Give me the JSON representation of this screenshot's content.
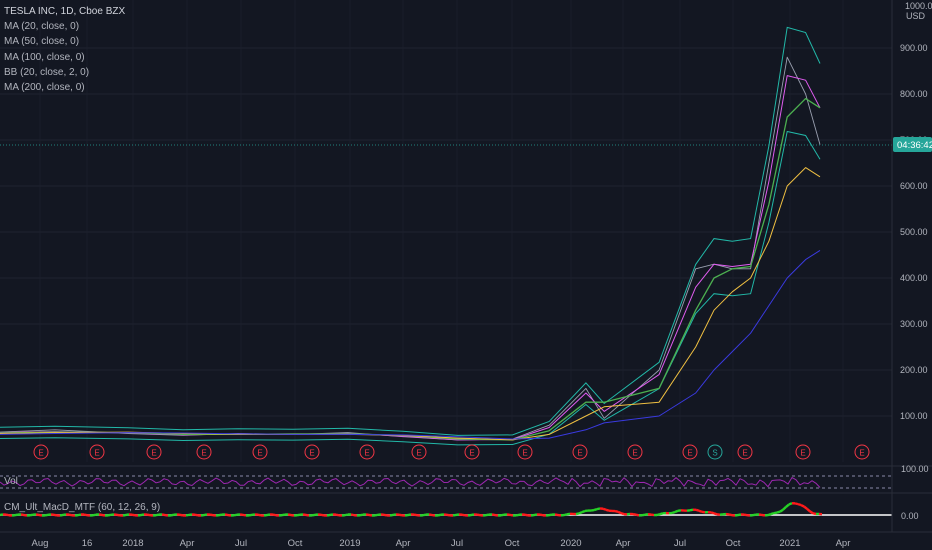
{
  "legend": {
    "symbol": "TESLA INC, 1D, Cboe BZX",
    "indicators": [
      "MA (20, close, 0)",
      "MA (50, close, 0)",
      "MA (100, close, 0)",
      "BB (20, close, 2, 0)",
      "MA (200, close, 0)"
    ]
  },
  "price_scale": {
    "currency_line1": "1000.00",
    "currency_line2": "USD"
  },
  "countdown": "04:36:42",
  "colors": {
    "background": "#131722",
    "price_tag": "#26a69a",
    "earnings": "#f23645",
    "ma20": "#e05cf0",
    "ma50": "#4caf50",
    "ma100": "#f0c042",
    "bb": "#22b8a8",
    "ma200": "#3a3ae0",
    "rsi": "#9c27b0",
    "macd_up": "#26d126",
    "macd_down": "#ff1a1a"
  },
  "events": {
    "earnings_label": "E",
    "split_label": "S"
  },
  "panes": {
    "vol": {
      "label": "Vol",
      "tick_label": "100.00"
    },
    "macd": {
      "label": "CM_Ult_MacD_MTF (60, 12, 26, 9)",
      "tick_label": "0.00"
    }
  },
  "chart_data": {
    "type": "line",
    "title": "TESLA INC, 1D, Cboe BZX",
    "ylim": [
      0,
      1000
    ],
    "y_ticks": [
      "100.00",
      "200.00",
      "300.00",
      "400.00",
      "500.00",
      "600.00",
      "700.00",
      "800.00",
      "900.00"
    ],
    "x_ticks": [
      "Aug",
      "16",
      "2018",
      "Apr",
      "Jul",
      "Oct",
      "2019",
      "Apr",
      "Jul",
      "Oct",
      "2020",
      "Apr",
      "Jul",
      "Oct",
      "2021",
      "Apr"
    ],
    "series": [
      {
        "name": "close",
        "x": [
          "2017-06",
          "2017-09",
          "2018-01",
          "2018-04",
          "2018-07",
          "2018-10",
          "2019-01",
          "2019-04",
          "2019-07",
          "2019-10",
          "2019-12",
          "2020-02",
          "2020-03",
          "2020-06",
          "2020-08",
          "2020-09",
          "2020-10",
          "2020-11",
          "2020-12",
          "2021-01",
          "2021-02",
          "2021-02-25"
        ],
        "values": [
          65,
          70,
          62,
          58,
          62,
          60,
          64,
          55,
          48,
          50,
          80,
          160,
          95,
          200,
          420,
          430,
          420,
          420,
          650,
          880,
          800,
          690
        ]
      },
      {
        "name": "MA (20, close, 0)",
        "values": [
          64,
          66,
          63,
          59,
          61,
          60,
          62,
          56,
          48,
          49,
          75,
          150,
          110,
          190,
          380,
          430,
          425,
          430,
          610,
          840,
          830,
          770
        ]
      },
      {
        "name": "MA (50, close, 0)",
        "values": [
          63,
          65,
          64,
          60,
          60,
          61,
          61,
          58,
          50,
          48,
          68,
          130,
          130,
          160,
          330,
          400,
          420,
          425,
          560,
          750,
          790,
          770
        ]
      },
      {
        "name": "MA (100, close, 0)",
        "values": [
          62,
          64,
          65,
          62,
          60,
          60,
          60,
          58,
          52,
          48,
          60,
          100,
          120,
          130,
          250,
          330,
          370,
          400,
          480,
          600,
          640,
          620
        ]
      },
      {
        "name": "MA (200, close, 0)",
        "values": [
          60,
          62,
          64,
          63,
          61,
          60,
          60,
          59,
          55,
          50,
          52,
          70,
          85,
          100,
          150,
          200,
          240,
          280,
          340,
          400,
          440,
          460
        ]
      }
    ],
    "earnings_events": [
      "2017-08",
      "2017-11",
      "2018-02",
      "2018-05",
      "2018-08",
      "2018-10",
      "2019-01",
      "2019-04",
      "2019-07",
      "2019-10",
      "2020-01",
      "2020-04",
      "2020-07",
      "2020-10",
      "2021-01",
      "2021-04"
    ],
    "split_events": [
      "2020-08"
    ],
    "grid": true
  }
}
